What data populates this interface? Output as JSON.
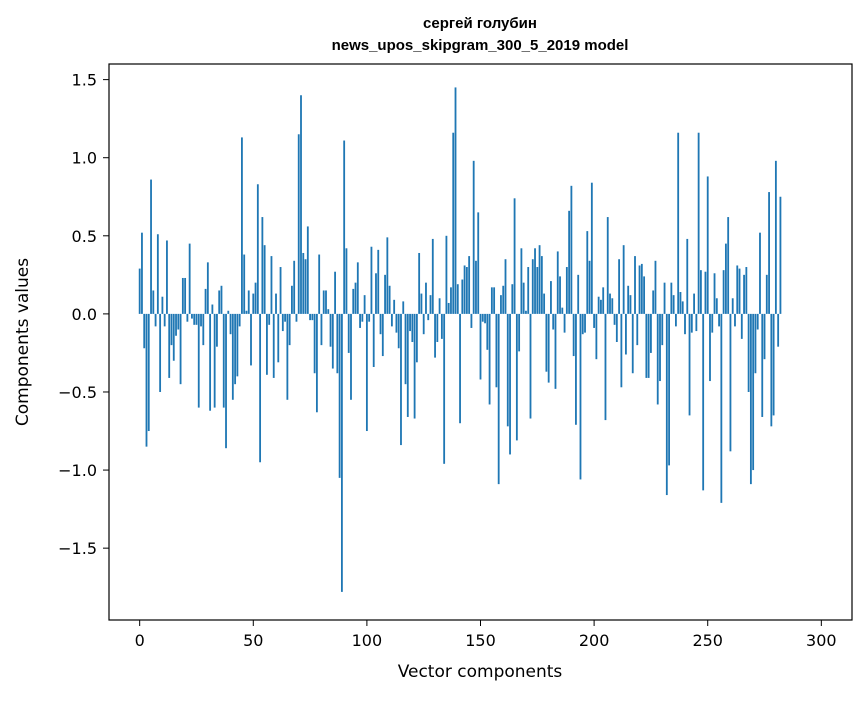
{
  "chart_data": {
    "type": "bar",
    "title": "сергей голубин",
    "subtitle": "news_upos_skipgram_300_5_2019 model",
    "xlabel": "Vector components",
    "ylabel": "Components values",
    "xlim": [
      -13.5,
      313.5
    ],
    "ylim": [
      -1.96,
      1.6
    ],
    "xticks": [
      0,
      50,
      100,
      150,
      200,
      250,
      300
    ],
    "xtick_labels": [
      "0",
      "50",
      "100",
      "150",
      "200",
      "250",
      "300"
    ],
    "yticks": [
      -1.5,
      -1.0,
      -0.5,
      0.0,
      0.5,
      1.0,
      1.5
    ],
    "ytick_labels": [
      "−1.5",
      "−1.0",
      "−0.5",
      "0.0",
      "0.5",
      "1.0",
      "1.5"
    ],
    "grid": false,
    "legend": "none",
    "bar_color": "#1f77b4",
    "values": [
      0.29,
      0.52,
      -0.22,
      -0.85,
      -0.75,
      0.86,
      0.15,
      -0.08,
      0.51,
      -0.5,
      0.11,
      -0.08,
      0.47,
      -0.41,
      -0.2,
      -0.3,
      -0.14,
      -0.1,
      -0.45,
      0.23,
      0.23,
      -0.05,
      0.45,
      -0.03,
      -0.07,
      -0.07,
      -0.6,
      -0.08,
      -0.2,
      0.16,
      0.33,
      -0.62,
      0.06,
      -0.6,
      -0.21,
      0.15,
      0.18,
      -0.6,
      -0.86,
      0.02,
      -0.13,
      -0.55,
      -0.45,
      -0.4,
      -0.08,
      1.13,
      0.38,
      0.02,
      0.15,
      -0.33,
      0.13,
      0.2,
      0.83,
      -0.95,
      0.62,
      0.44,
      -0.39,
      -0.07,
      0.37,
      -0.41,
      0.13,
      -0.31,
      0.3,
      -0.11,
      -0.05,
      -0.55,
      -0.2,
      0.18,
      0.34,
      -0.05,
      1.15,
      1.4,
      0.39,
      0.35,
      0.56,
      -0.04,
      -0.04,
      -0.38,
      -0.63,
      0.38,
      -0.2,
      0.15,
      0.15,
      0.03,
      -0.21,
      -0.35,
      0.27,
      -0.38,
      -1.05,
      -1.78,
      1.11,
      0.42,
      -0.25,
      -0.55,
      0.16,
      0.2,
      0.33,
      -0.09,
      -0.05,
      0.12,
      -0.75,
      -0.05,
      0.43,
      -0.34,
      0.26,
      0.41,
      -0.13,
      -0.27,
      0.25,
      0.49,
      0.18,
      -0.08,
      0.09,
      -0.12,
      -0.22,
      -0.84,
      0.08,
      -0.45,
      -0.66,
      -0.11,
      -0.18,
      -0.67,
      -0.31,
      0.39,
      0.13,
      -0.13,
      0.2,
      -0.04,
      0.12,
      0.48,
      -0.28,
      -0.18,
      0.1,
      -0.16,
      -0.96,
      0.5,
      0.07,
      0.17,
      1.16,
      1.45,
      0.19,
      -0.7,
      0.22,
      0.31,
      0.3,
      0.37,
      -0.09,
      0.98,
      0.34,
      0.65,
      -0.42,
      -0.05,
      -0.06,
      -0.23,
      -0.58,
      0.17,
      0.17,
      -0.47,
      -1.09,
      0.12,
      0.18,
      0.35,
      -0.72,
      -0.9,
      0.19,
      0.74,
      -0.81,
      -0.24,
      0.42,
      0.2,
      0.02,
      0.3,
      -0.67,
      0.35,
      0.42,
      0.3,
      0.44,
      0.37,
      0.13,
      -0.37,
      -0.44,
      0.21,
      -0.1,
      -0.48,
      0.4,
      0.24,
      0.04,
      -0.12,
      0.3,
      0.66,
      0.82,
      -0.27,
      -0.71,
      0.25,
      -1.06,
      -0.13,
      -0.12,
      0.53,
      0.34,
      0.84,
      -0.09,
      -0.29,
      0.11,
      0.09,
      0.17,
      -0.68,
      0.62,
      0.13,
      0.1,
      -0.07,
      -0.18,
      0.35,
      -0.47,
      0.44,
      -0.26,
      0.18,
      0.12,
      -0.38,
      0.37,
      -0.2,
      0.31,
      0.32,
      0.24,
      -0.41,
      -0.41,
      -0.25,
      0.15,
      0.34,
      -0.58,
      -0.43,
      -0.2,
      0.2,
      -1.16,
      -0.97,
      0.2,
      0.12,
      -0.08,
      1.16,
      0.14,
      0.08,
      -0.13,
      0.48,
      -0.65,
      -0.12,
      0.13,
      -0.11,
      1.16,
      0.28,
      -1.13,
      0.27,
      0.88,
      -0.43,
      -0.12,
      0.26,
      0.1,
      -0.08,
      -1.21,
      0.28,
      0.45,
      0.62,
      -0.88,
      0.1,
      -0.08,
      0.31,
      0.29,
      -0.16,
      0.25,
      0.3,
      -0.5,
      -1.09,
      -1.0,
      -0.38,
      -0.1,
      0.52,
      -0.66,
      -0.29,
      0.25,
      0.78,
      -0.72,
      -0.65,
      0.98,
      -0.21,
      0.75
    ]
  }
}
